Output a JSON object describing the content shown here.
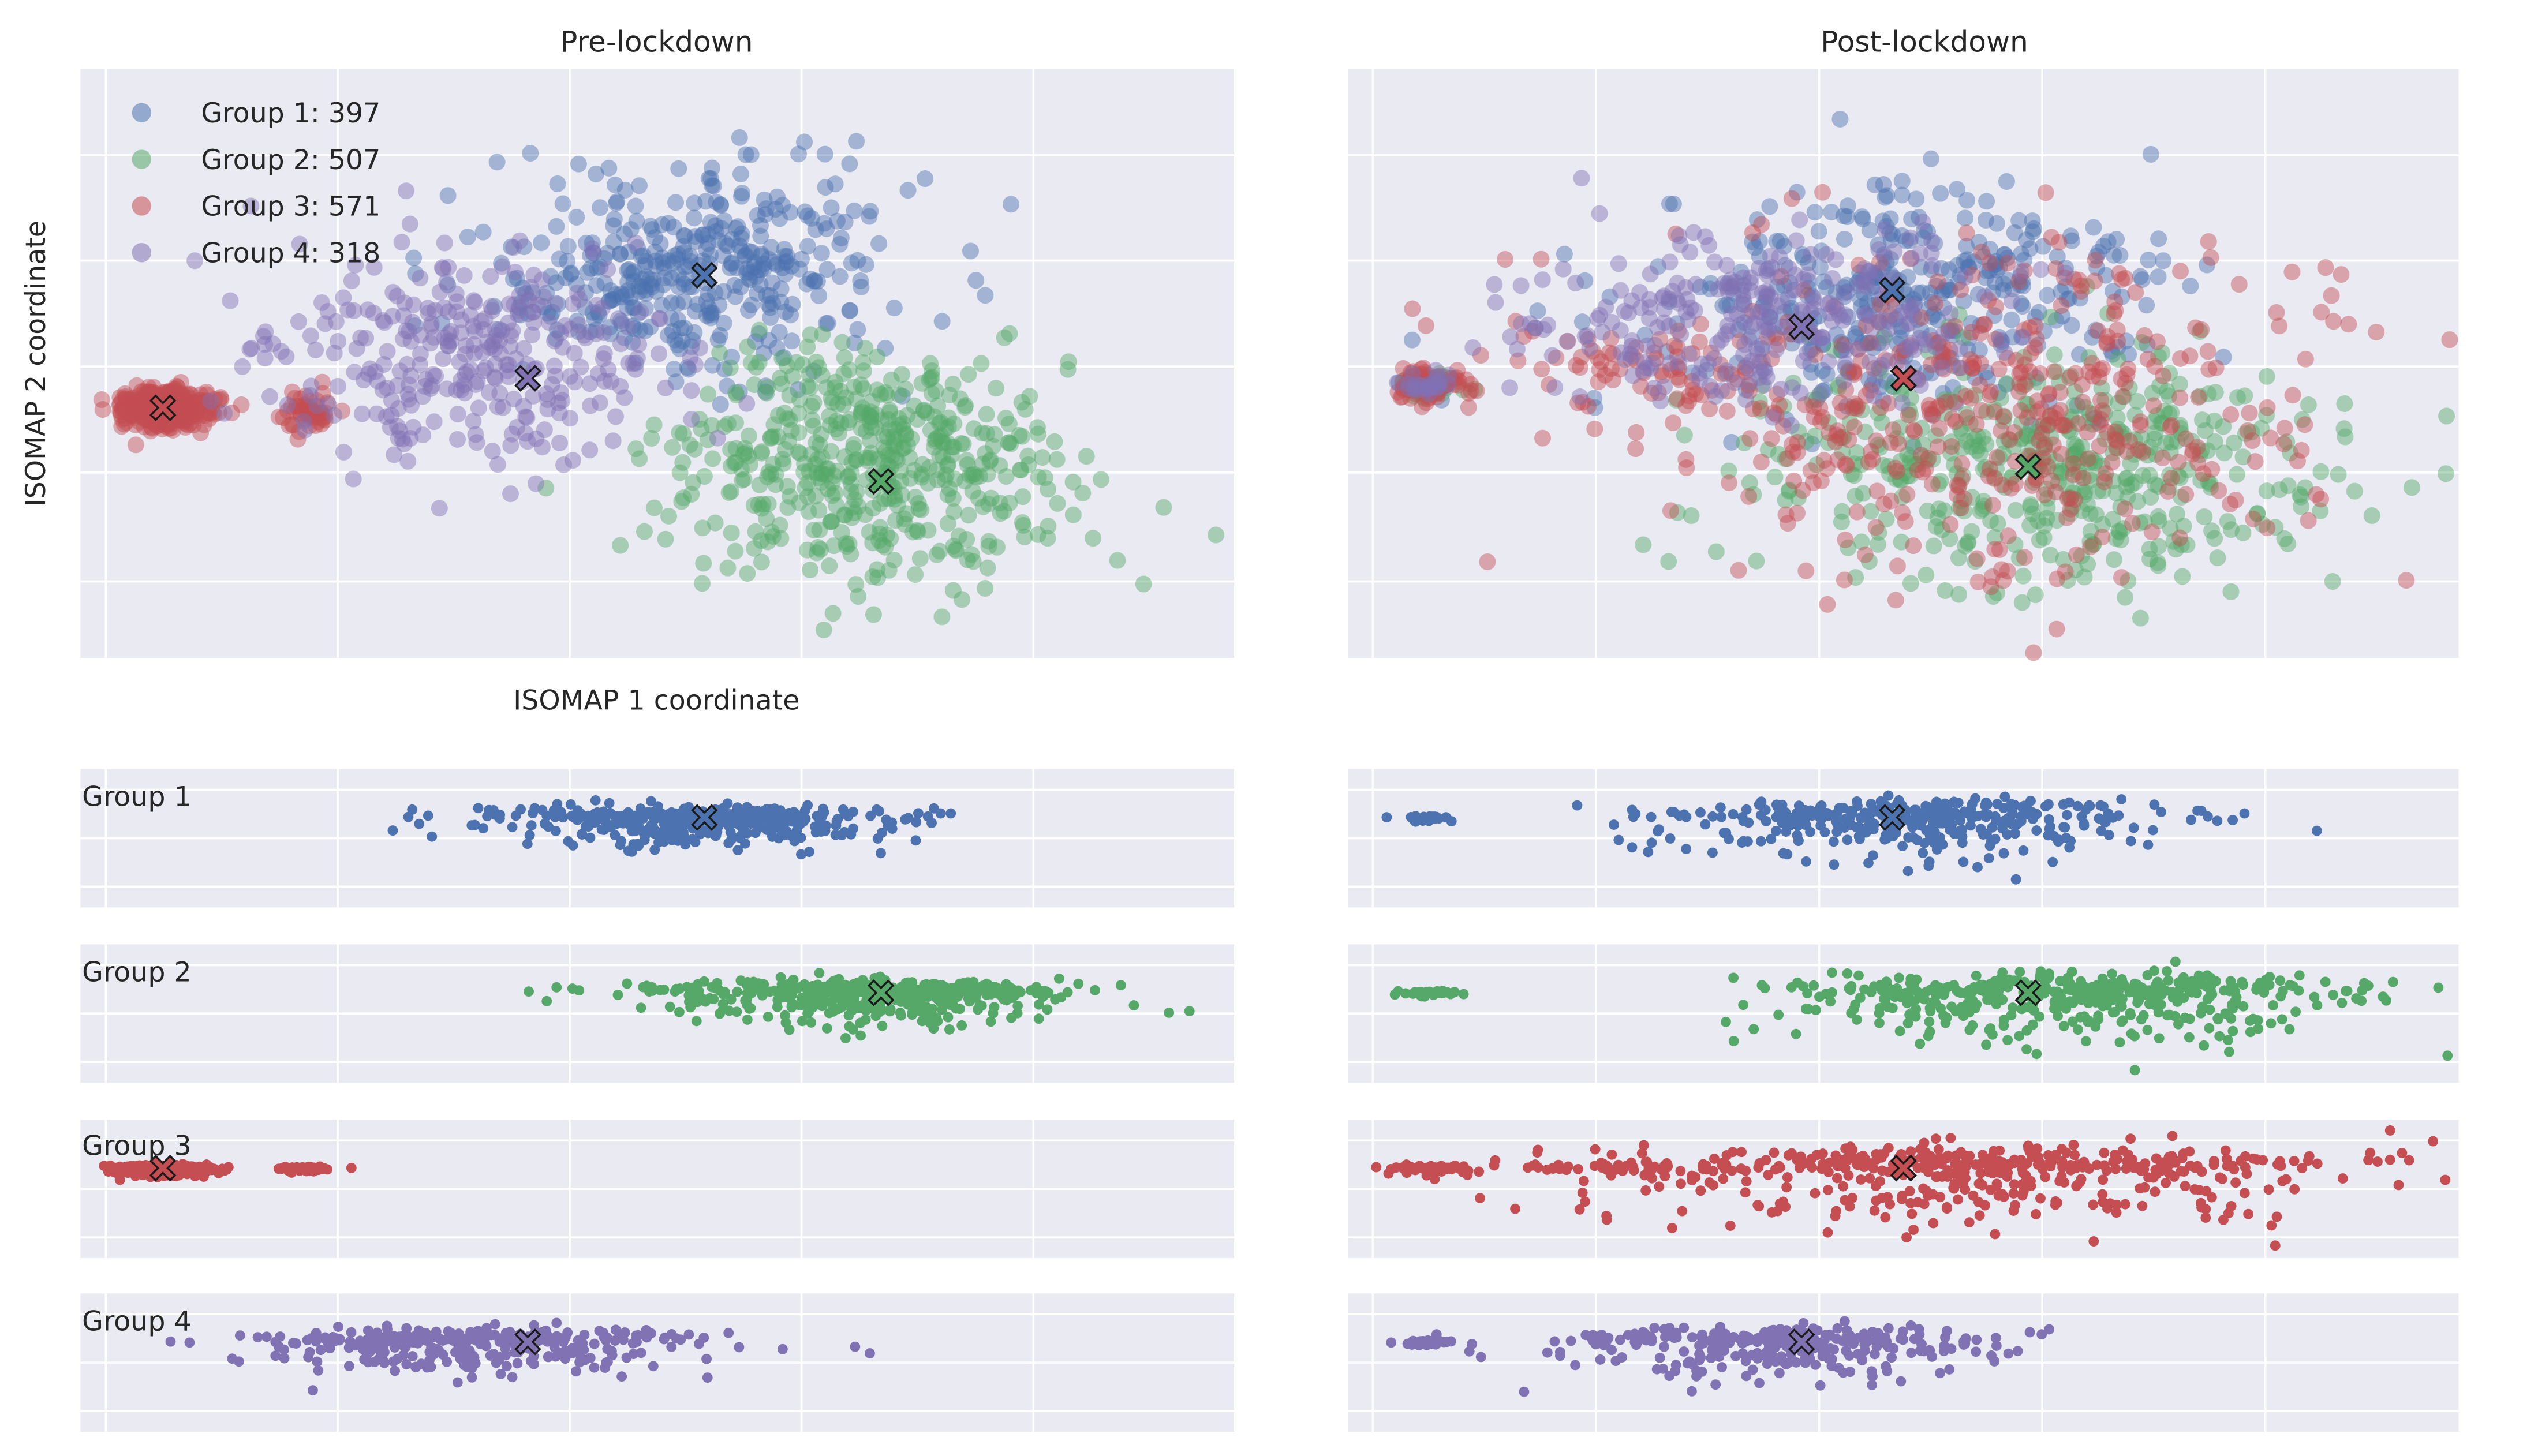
{
  "chart_data": {
    "type": "scatter",
    "titles": {
      "pre": "Pre-lockdown",
      "post": "Post-lockdown"
    },
    "xlabel": "ISOMAP 1 coordinate",
    "ylabel": "ISOMAP 2 coordinate",
    "x_axis_range": [
      -1.1,
      3.8
    ],
    "grid": true,
    "legend_position": "top-left",
    "groups": [
      {
        "name": "Group 1",
        "count": 397,
        "legend": "Group 1: 397",
        "color": "#4c72b0",
        "pre": {
          "centroid_x": 1.55,
          "centroid_y": 1.1,
          "clusters": [
            {
              "cx": 1.55,
              "cy": 1.15,
              "sx": 0.42,
              "sy": 0.35,
              "n": 340
            },
            {
              "cx": 1.1,
              "cy": 1.0,
              "sx": 0.3,
              "sy": 0.22,
              "n": 57
            }
          ]
        },
        "post": {
          "centroid_x": 1.3,
          "centroid_y": 1.0,
          "clusters": [
            {
              "cx": 1.4,
              "cy": 0.95,
              "sx": 0.55,
              "sy": 0.4,
              "n": 370
            },
            {
              "cx": -0.75,
              "cy": 0.35,
              "sx": 0.06,
              "sy": 0.04,
              "n": 27
            }
          ]
        }
      },
      {
        "name": "Group 2",
        "count": 507,
        "legend": "Group 2: 507",
        "color": "#55a868",
        "pre": {
          "centroid_x": 2.3,
          "centroid_y": -0.3,
          "clusters": [
            {
              "cx": 2.25,
              "cy": -0.2,
              "sx": 0.42,
              "sy": 0.38,
              "n": 507
            }
          ]
        },
        "post": {
          "centroid_x": 1.9,
          "centroid_y": -0.2,
          "clusters": [
            {
              "cx": 2.0,
              "cy": -0.25,
              "sx": 0.65,
              "sy": 0.4,
              "n": 470
            },
            {
              "cx": -0.75,
              "cy": 0.35,
              "sx": 0.06,
              "sy": 0.04,
              "n": 37
            }
          ]
        }
      },
      {
        "name": "Group 3",
        "count": 571,
        "legend": "Group 3: 571",
        "color": "#c44e52",
        "pre": {
          "centroid_x": -0.75,
          "centroid_y": 0.2,
          "clusters": [
            {
              "cx": -0.75,
              "cy": 0.2,
              "sx": 0.09,
              "sy": 0.06,
              "n": 520
            },
            {
              "cx": -0.15,
              "cy": 0.15,
              "sx": 0.06,
              "sy": 0.08,
              "n": 51
            }
          ]
        },
        "post": {
          "centroid_x": 1.35,
          "centroid_y": 0.4,
          "clusters": [
            {
              "cx": 1.7,
              "cy": 0.2,
              "sx": 0.8,
              "sy": 0.55,
              "n": 460
            },
            {
              "cx": -0.75,
              "cy": 0.35,
              "sx": 0.1,
              "sy": 0.06,
              "n": 60
            },
            {
              "cx": 0.2,
              "cy": 0.5,
              "sx": 0.25,
              "sy": 0.12,
              "n": 51
            }
          ]
        }
      },
      {
        "name": "Group 4",
        "count": 318,
        "legend": "Group 4: 318",
        "color": "#8172b3",
        "pre": {
          "centroid_x": 0.8,
          "centroid_y": 0.4,
          "clusters": [
            {
              "cx": 0.55,
              "cy": 0.55,
              "sx": 0.45,
              "sy": 0.35,
              "n": 318
            }
          ]
        },
        "post": {
          "centroid_x": 0.9,
          "centroid_y": 0.75,
          "clusters": [
            {
              "cx": 0.8,
              "cy": 0.8,
              "sx": 0.5,
              "sy": 0.3,
              "n": 290
            },
            {
              "cx": -0.75,
              "cy": 0.35,
              "sx": 0.07,
              "sy": 0.04,
              "n": 28
            }
          ]
        }
      }
    ],
    "strip_labels": [
      "Group 1",
      "Group 2",
      "Group 3",
      "Group 4"
    ]
  }
}
